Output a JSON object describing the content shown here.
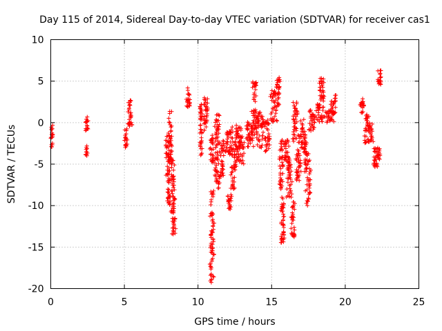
{
  "chart_data": {
    "type": "scatter",
    "title": "Day 115 of 2014, Sidereal Day-to-day VTEC variation (SDTVAR) for receiver cas1",
    "xlabel": "GPS time / hours",
    "ylabel": "SDTVAR / TECUs",
    "xlim": [
      0,
      25
    ],
    "ylim": [
      -20,
      10
    ],
    "xticks": [
      0,
      5,
      10,
      15,
      20,
      25
    ],
    "yticks": [
      -20,
      -15,
      -10,
      -5,
      0,
      5,
      10
    ],
    "grid": true,
    "marker": "+",
    "series": [
      {
        "name": "cas1",
        "color": "#ff0000",
        "clusters": [
          {
            "x": [
              0.0,
              0.15
            ],
            "y": [
              -3.0,
              -0.2
            ]
          },
          {
            "x": [
              2.35,
              2.5
            ],
            "y": [
              -4.0,
              -2.8
            ]
          },
          {
            "x": [
              2.35,
              2.55
            ],
            "y": [
              -1.0,
              0.8
            ]
          },
          {
            "x": [
              5.0,
              5.2
            ],
            "y": [
              -3.0,
              -0.3
            ]
          },
          {
            "x": [
              5.2,
              5.55
            ],
            "y": [
              -0.5,
              2.8
            ]
          },
          {
            "x": [
              7.8,
              8.1
            ],
            "y": [
              -7.5,
              -1.0
            ]
          },
          {
            "x": [
              7.9,
              8.15
            ],
            "y": [
              -10.0,
              -8.0
            ]
          },
          {
            "x": [
              8.0,
              8.25
            ],
            "y": [
              -5.0,
              1.5
            ]
          },
          {
            "x": [
              8.2,
              8.5
            ],
            "y": [
              -13.5,
              -11.5
            ]
          },
          {
            "x": [
              8.15,
              8.45
            ],
            "y": [
              -11.0,
              -4.5
            ]
          },
          {
            "x": [
              9.2,
              9.5
            ],
            "y": [
              1.8,
              4.2
            ]
          },
          {
            "x": [
              10.1,
              10.3
            ],
            "y": [
              -4.0,
              2.5
            ]
          },
          {
            "x": [
              10.35,
              10.7
            ],
            "y": [
              -1.0,
              3.0
            ]
          },
          {
            "x": [
              10.8,
              11.1
            ],
            "y": [
              -19.5,
              -8.0
            ]
          },
          {
            "x": [
              10.8,
              11.1
            ],
            "y": [
              -5.0,
              -1.5
            ]
          },
          {
            "x": [
              11.1,
              11.5
            ],
            "y": [
              -8.0,
              -3.5
            ]
          },
          {
            "x": [
              11.1,
              11.5
            ],
            "y": [
              -3.0,
              1.0
            ]
          },
          {
            "x": [
              11.5,
              11.8
            ],
            "y": [
              -6.5,
              -2.0
            ]
          },
          {
            "x": [
              11.8,
              12.4
            ],
            "y": [
              -4.0,
              -0.5
            ]
          },
          {
            "x": [
              12.0,
              12.3
            ],
            "y": [
              -10.5,
              -8.5
            ]
          },
          {
            "x": [
              12.2,
              12.6
            ],
            "y": [
              -8.0,
              -3.0
            ]
          },
          {
            "x": [
              12.5,
              13.2
            ],
            "y": [
              -5.0,
              -1.5
            ]
          },
          {
            "x": [
              12.4,
              13.0
            ],
            "y": [
              -3.5,
              -0.2
            ]
          },
          {
            "x": [
              13.2,
              13.8
            ],
            "y": [
              -3.0,
              0.2
            ]
          },
          {
            "x": [
              13.6,
              14.1
            ],
            "y": [
              -2.0,
              2.0
            ]
          },
          {
            "x": [
              13.7,
              14.0
            ],
            "y": [
              2.5,
              5.0
            ]
          },
          {
            "x": [
              14.0,
              14.5
            ],
            "y": [
              -3.0,
              1.5
            ]
          },
          {
            "x": [
              14.5,
              14.9
            ],
            "y": [
              -3.5,
              0.5
            ]
          },
          {
            "x": [
              14.9,
              15.4
            ],
            "y": [
              0.0,
              4.0
            ]
          },
          {
            "x": [
              15.3,
              15.6
            ],
            "y": [
              2.0,
              5.5
            ]
          },
          {
            "x": [
              15.5,
              15.8
            ],
            "y": [
              -8.0,
              -2.0
            ]
          },
          {
            "x": [
              15.6,
              15.9
            ],
            "y": [
              -15.0,
              -8.5
            ]
          },
          {
            "x": [
              15.8,
              16.2
            ],
            "y": [
              -5.0,
              -2.0
            ]
          },
          {
            "x": [
              16.0,
              16.4
            ],
            "y": [
              -9.0,
              -4.0
            ]
          },
          {
            "x": [
              16.3,
              16.6
            ],
            "y": [
              -14.0,
              -9.5
            ]
          },
          {
            "x": [
              16.4,
              16.8
            ],
            "y": [
              -2.5,
              2.5
            ]
          },
          {
            "x": [
              16.6,
              17.0
            ],
            "y": [
              -7.0,
              -1.5
            ]
          },
          {
            "x": [
              16.9,
              17.4
            ],
            "y": [
              -4.0,
              0.5
            ]
          },
          {
            "x": [
              17.2,
              17.7
            ],
            "y": [
              -10.0,
              -3.0
            ]
          },
          {
            "x": [
              17.5,
              18.0
            ],
            "y": [
              -1.0,
              1.5
            ]
          },
          {
            "x": [
              18.0,
              18.6
            ],
            "y": [
              0.0,
              3.0
            ]
          },
          {
            "x": [
              18.2,
              18.6
            ],
            "y": [
              3.0,
              5.5
            ]
          },
          {
            "x": [
              18.6,
              19.3
            ],
            "y": [
              0.0,
              1.5
            ]
          },
          {
            "x": [
              19.0,
              19.4
            ],
            "y": [
              1.0,
              3.5
            ]
          },
          {
            "x": [
              21.0,
              21.3
            ],
            "y": [
              1.0,
              3.0
            ]
          },
          {
            "x": [
              21.3,
              21.6
            ],
            "y": [
              -2.5,
              1.0
            ]
          },
          {
            "x": [
              21.5,
              21.9
            ],
            "y": [
              -2.5,
              0.0
            ]
          },
          {
            "x": [
              21.9,
              22.2
            ],
            "y": [
              -5.5,
              -3.0
            ]
          },
          {
            "x": [
              22.1,
              22.4
            ],
            "y": [
              -4.5,
              -3.0
            ]
          },
          {
            "x": [
              22.2,
              22.5
            ],
            "y": [
              4.5,
              6.3
            ]
          }
        ]
      }
    ]
  }
}
